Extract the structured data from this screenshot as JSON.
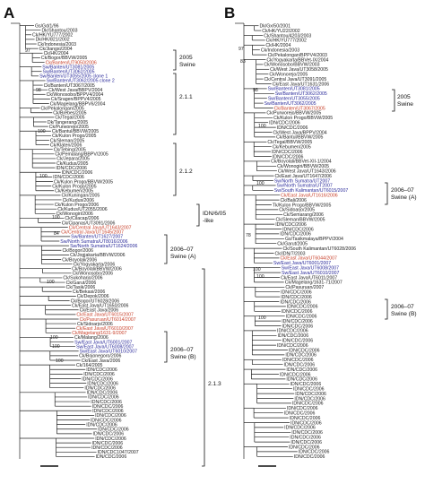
{
  "colors": {
    "swine": "#2a2a9a",
    "poultry_highlight": "#c8402a",
    "default": "#222222"
  },
  "panels": [
    {
      "id": "A",
      "letter": "A",
      "root": "Gs/Gd/1/96",
      "bootstraps": [
        "97",
        "98",
        "100",
        "100",
        "100",
        "84",
        "100",
        "100",
        "100",
        "100"
      ],
      "leaves": [
        {
          "t": "Gs/Gd/1/96",
          "c": "default"
        },
        {
          "t": "Dk/Shantou/2003",
          "c": "default"
        },
        {
          "t": "Ck/HK/YU777/2002",
          "c": "default"
        },
        {
          "t": "Dk/HK/821/2002",
          "c": "default"
        },
        {
          "t": "Ck/Indonesia/2003",
          "c": "default"
        },
        {
          "t": "Ck/Jiangxi/2004",
          "c": "default"
        },
        {
          "t": "Ck/HK/2004",
          "c": "default"
        },
        {
          "t": "Ck/Bogor/BBVW/2005",
          "c": "default"
        },
        {
          "t": "Ck/Banten/UT9050/2006",
          "c": "poultry_highlight"
        },
        {
          "t": "Sw/Banten/UT3081/2005",
          "c": "swine"
        },
        {
          "t": "Sw/Banten/UT3062/2005",
          "c": "swine"
        },
        {
          "t": "Sw/Banten/UT3055/2005 clone 1",
          "c": "swine"
        },
        {
          "t": "Sw/Banten/UT3062/2005 clone 2",
          "c": "swine"
        },
        {
          "t": "Ck/Banten/UT3067/2005",
          "c": "default"
        },
        {
          "t": "Ck/West Java/BBPV/2004",
          "c": "default"
        },
        {
          "t": "Ck/Wonosobo/BPPV4/2004",
          "c": "default"
        },
        {
          "t": "Ck/Sragen/BPPV4/2005",
          "c": "default"
        },
        {
          "t": "Ck/Magelang/BBPV6/2004",
          "c": "default"
        },
        {
          "t": "Ck/Pekalongan/2005",
          "c": "default"
        },
        {
          "t": "Ck/Brebes/2005",
          "c": "default"
        },
        {
          "t": "Ck/Tegal/2005",
          "c": "default"
        },
        {
          "t": "Dk/Tangerang/2005",
          "c": "default"
        },
        {
          "t": "Ck/Purworejo/2005",
          "c": "default"
        },
        {
          "t": "Ck/Bantul/BBVW/2005",
          "c": "default"
        },
        {
          "t": "Ck/Kulon Progo/2005",
          "c": "default"
        },
        {
          "t": "Ck/Sleman/2005",
          "c": "default"
        },
        {
          "t": "Ck/Klaten/2006",
          "c": "default"
        },
        {
          "t": "Ck/Tebing/2005",
          "c": "default"
        },
        {
          "t": "Ck/Pemalang/BBPV/2005",
          "c": "default"
        },
        {
          "t": "Ck/Jepara/2005",
          "c": "default"
        },
        {
          "t": "Ck/Kudus/2005",
          "c": "default"
        },
        {
          "t": "IDN/CDC/2006",
          "c": "default"
        },
        {
          "t": "IDN/CDC/2006",
          "c": "default"
        },
        {
          "t": "IDN/CDC/2006",
          "c": "default"
        },
        {
          "t": "Ck/Kulon Progo/BBVW/2005",
          "c": "default"
        },
        {
          "t": "Ck/Kulon Progo/2005",
          "c": "default"
        },
        {
          "t": "Ck/Kebumen/2005",
          "c": "default"
        },
        {
          "t": "Ck/Kuningan/2005",
          "c": "default"
        },
        {
          "t": "Ck/Kudus/2006",
          "c": "default"
        },
        {
          "t": "Ck/Kulon Progo/2006",
          "c": "default"
        },
        {
          "t": "Ck/Kudus/UT2055/2006",
          "c": "default"
        },
        {
          "t": "Ck/Wonogiri/2006",
          "c": "default"
        },
        {
          "t": "Ck/Cilacap/2006",
          "c": "default"
        },
        {
          "t": "Ck/Cipanas/UT3091/2006",
          "c": "default"
        },
        {
          "t": "Ck/Central Java/UT1643/2007",
          "c": "poultry_highlight"
        },
        {
          "t": "Ck/Central Java/UT1645/2007",
          "c": "poultry_highlight"
        },
        {
          "t": "Sw/Banten/UT1627/2007",
          "c": "swine"
        },
        {
          "t": "Sw/North Sumatra/UT8016/2006",
          "c": "swine"
        },
        {
          "t": "Sw/North Sumatra/UT1624/2006",
          "c": "swine"
        },
        {
          "t": "Ck/Bogor/2006",
          "c": "default"
        },
        {
          "t": "Ck/Jogjakarta/BBVW/2006",
          "c": "default"
        },
        {
          "t": "Ck/Boyolali/2006",
          "c": "default"
        },
        {
          "t": "Ck/Yogyakarta/2006",
          "c": "default"
        },
        {
          "t": "Ck/Boyolali/BBVW/2006",
          "c": "default"
        },
        {
          "t": "Ck/Wonosobo/2006",
          "c": "default"
        },
        {
          "t": "Ck/Sukoharjo/2006",
          "c": "default"
        },
        {
          "t": "Ck/Garut/2006",
          "c": "default"
        },
        {
          "t": "Ck/Tasik/2006",
          "c": "default"
        },
        {
          "t": "Ck/Bekasi/2006",
          "c": "default"
        },
        {
          "t": "Ck/Depok/2006",
          "c": "default"
        },
        {
          "t": "Ck/Bogor/UT6028/2006",
          "c": "default"
        },
        {
          "t": "Ck/East Java/UT1650/2006",
          "c": "default"
        },
        {
          "t": "Ck/East Java/2006",
          "c": "default"
        },
        {
          "t": "Ck/East Java/UT6015/2007",
          "c": "poultry_highlight"
        },
        {
          "t": "Ck/Pasuruan/UT6014/2007",
          "c": "poultry_highlight"
        },
        {
          "t": "Ck/Sidoarjo/2006",
          "c": "default"
        },
        {
          "t": "Ck/East Java/UT6010/2007",
          "c": "poultry_highlight"
        },
        {
          "t": "Ck/Magelang/1631-9/2007",
          "c": "poultry_highlight"
        },
        {
          "t": "Ck/Malang/2006",
          "c": "default"
        },
        {
          "t": "Sw/East Java/UT6001/2007",
          "c": "swine"
        },
        {
          "t": "Sw/East Java/UT6008/2007",
          "c": "swine"
        },
        {
          "t": "Sw/East Java/UT6010/2007",
          "c": "swine"
        },
        {
          "t": "Ck/Bojonegoro/2006",
          "c": "default"
        },
        {
          "t": "Ck/East Java/2006",
          "c": "default"
        },
        {
          "t": "Ck/164/2005",
          "c": "default"
        },
        {
          "t": "IDN/CDC/2006",
          "c": "default"
        },
        {
          "t": "IDN/CDC/2006",
          "c": "default"
        },
        {
          "t": "IDN/CDC/2006",
          "c": "default"
        },
        {
          "t": "IDN/CDC/2006",
          "c": "default"
        },
        {
          "t": "IDN/CDC/2006",
          "c": "default"
        },
        {
          "t": "IDN/CDC/2006",
          "c": "default"
        },
        {
          "t": "IDN/CDC/2006",
          "c": "default"
        },
        {
          "t": "IDN/CDC/2006",
          "c": "default"
        },
        {
          "t": "IDN/CDC/2006",
          "c": "default"
        },
        {
          "t": "IDN/CDC/2006",
          "c": "default"
        },
        {
          "t": "IDN/CDC/2006",
          "c": "default"
        },
        {
          "t": "IDN/CDC/2006",
          "c": "default"
        },
        {
          "t": "IDN/CDC/2006",
          "c": "default"
        },
        {
          "t": "IDN/CDC/2006",
          "c": "default"
        },
        {
          "t": "IDN/CDC/2006",
          "c": "default"
        },
        {
          "t": "IDN/CDC/2006",
          "c": "default"
        },
        {
          "t": "IDN/CDC/2006",
          "c": "default"
        },
        {
          "t": "IDN/CDC/2006",
          "c": "default"
        },
        {
          "t": "IDN/CDC1047/2007",
          "c": "default"
        },
        {
          "t": "IDN/CDC/2006",
          "c": "default"
        }
      ],
      "clades": [
        {
          "label": "2005",
          "sub": "Swine"
        },
        {
          "label": "2.1.1"
        },
        {
          "label": "2.1.2"
        },
        {
          "label": "IDN/6/05",
          "sub": "-like"
        },
        {
          "label": "2006–07",
          "sub": "Swine (A)"
        },
        {
          "label": "2006–07",
          "sub": "Swine (B)"
        },
        {
          "label": "2.1.3"
        }
      ]
    },
    {
      "id": "B",
      "letter": "B",
      "root": "Dk/Gx/50/2001",
      "bootstraps": [
        "97",
        "83",
        "98",
        "100",
        "100",
        "78",
        "100",
        "100",
        "100"
      ],
      "leaves": [
        {
          "t": "Dk/Gx/50/2001",
          "c": "default"
        },
        {
          "t": "Ck/HK/YU22/2002",
          "c": "default"
        },
        {
          "t": "Ck/Shantou/4203/2003",
          "c": "default"
        },
        {
          "t": "Ck/HK/YU777/2002",
          "c": "default"
        },
        {
          "t": "Ck/HK/2004",
          "c": "default"
        },
        {
          "t": "Ck/Indonesia/2003",
          "c": "default"
        },
        {
          "t": "Ck/Pekalongan/BPPV4/2003",
          "c": "default"
        },
        {
          "t": "Ck/Yogyakarta/BBVet-IX/2004",
          "c": "default"
        },
        {
          "t": "Ck/Wonosobo/BBVW/2003",
          "c": "default"
        },
        {
          "t": "Ck/West Java/UT3058/2005",
          "c": "default"
        },
        {
          "t": "Ck/Wonorejo/2005",
          "c": "default"
        },
        {
          "t": "Ck/Central Java/UT3091/2005",
          "c": "default"
        },
        {
          "t": "Ck/East Java/UT1631/2006",
          "c": "default"
        },
        {
          "t": "Sw/Banten/UT3081/2005",
          "c": "swine"
        },
        {
          "t": "Sw/Banten/UT3062/2005",
          "c": "swine"
        },
        {
          "t": "Sw/Banten/UT3055/2005",
          "c": "swine"
        },
        {
          "t": "Sw/Banten/UT3062/2005",
          "c": "swine"
        },
        {
          "t": "Ck/Banten/UT3067/2005",
          "c": "poultry_highlight"
        },
        {
          "t": "Ck/Purworejo/BBVW/2005",
          "c": "default"
        },
        {
          "t": "Ck/Kulon Progo/BBVW/2005",
          "c": "default"
        },
        {
          "t": "IDN/CDC/2006",
          "c": "default"
        },
        {
          "t": "IDN/CDC/2006",
          "c": "default"
        },
        {
          "t": "Ck/West Java/BPPV/2004",
          "c": "default"
        },
        {
          "t": "Ck/Bantul/BBVW/2005",
          "c": "default"
        },
        {
          "t": "Ck/Tegal/BBVW/2005",
          "c": "default"
        },
        {
          "t": "Ck/Kebumen/2005",
          "c": "default"
        },
        {
          "t": "IDN/CDC/2006",
          "c": "default"
        },
        {
          "t": "IDN/CDC/2006",
          "c": "default"
        },
        {
          "t": "Ck/Boyolali/BBVet-XII-1/2004",
          "c": "default"
        },
        {
          "t": "Ck/Wonogiri/BBVW/2005",
          "c": "default"
        },
        {
          "t": "Ck/West Java/UT1643/2006",
          "c": "default"
        },
        {
          "t": "Ck/East Java/UT1647/2006",
          "c": "default"
        },
        {
          "t": "Sw/North Sumatra/UT2007",
          "c": "swine"
        },
        {
          "t": "Sw/North Sumatra/UT2007",
          "c": "swine"
        },
        {
          "t": "Sw/South Kalimantan/UT6015/2007",
          "c": "swine"
        },
        {
          "t": "Ck/East Java/UT1616/2006",
          "c": "poultry_highlight"
        },
        {
          "t": "Ck/Bali/2006",
          "c": "default"
        },
        {
          "t": "Tk/Kulon Progo/BBVW/2005",
          "c": "default"
        },
        {
          "t": "Ck/Sidoarjo/2005",
          "c": "default"
        },
        {
          "t": "Ck/Semarang/2006",
          "c": "default"
        },
        {
          "t": "Ck/Sleman/BBVW/2005",
          "c": "default"
        },
        {
          "t": "IDN/CDC/2006",
          "c": "default"
        },
        {
          "t": "IDN/CDC/2006",
          "c": "default"
        },
        {
          "t": "IDN/CDC/2006",
          "c": "default"
        },
        {
          "t": "Gs/Tasikmalaya/BPPV/2004",
          "c": "default"
        },
        {
          "t": "Ck/Garut/2005",
          "c": "default"
        },
        {
          "t": "Ck/South Kalimantan/UT6028/2006",
          "c": "default"
        },
        {
          "t": "Ck/IDN/7/2003",
          "c": "default"
        },
        {
          "t": "Ck/East Java/UT6044/2007",
          "c": "poultry_highlight"
        },
        {
          "t": "Sw/East Java/UT6001/2007",
          "c": "swine"
        },
        {
          "t": "Sw/East Java/UT6008/2007",
          "c": "swine"
        },
        {
          "t": "Sw/East Java/UT6010/2007",
          "c": "swine"
        },
        {
          "t": "Ck/East Java/UT6011/2007",
          "c": "default"
        },
        {
          "t": "Ck/Magelang/1631-71/2007",
          "c": "default"
        },
        {
          "t": "Ck/Pasuruan/2007",
          "c": "default"
        },
        {
          "t": "IDN/CDC/2006",
          "c": "default"
        },
        {
          "t": "IDN/CDC/2006",
          "c": "default"
        },
        {
          "t": "IDN/CDC/2006",
          "c": "default"
        },
        {
          "t": "IDN/CDC/2006",
          "c": "default"
        },
        {
          "t": "IDN/CDC/2006",
          "c": "default"
        },
        {
          "t": "IDN/CDC/2006",
          "c": "default"
        },
        {
          "t": "IDN/CDC/2006",
          "c": "default"
        },
        {
          "t": "IDN/CDC/2006",
          "c": "default"
        },
        {
          "t": "IDN/CDC/2006",
          "c": "default"
        },
        {
          "t": "IDN/CDC/2006",
          "c": "default"
        },
        {
          "t": "IDN/CDC/2006",
          "c": "default"
        },
        {
          "t": "IDN/CDC/2006",
          "c": "default"
        },
        {
          "t": "IDN/CDC/2006",
          "c": "default"
        },
        {
          "t": "IDN/CDC/2006",
          "c": "default"
        },
        {
          "t": "IDN/CDC/2006",
          "c": "default"
        },
        {
          "t": "IDN/CDC/2006",
          "c": "default"
        },
        {
          "t": "IDN/CDC/2006",
          "c": "default"
        },
        {
          "t": "IDN/CDC/2006",
          "c": "default"
        },
        {
          "t": "IDN/CDC/2006",
          "c": "default"
        },
        {
          "t": "IDN/CDC/2006",
          "c": "default"
        },
        {
          "t": "IDN/CDC/2006",
          "c": "default"
        },
        {
          "t": "IDN/CDC/2006",
          "c": "default"
        },
        {
          "t": "IDN/CDC/2006",
          "c": "default"
        },
        {
          "t": "IDN/CDC/2006",
          "c": "default"
        },
        {
          "t": "IDN/CDC/2006",
          "c": "default"
        },
        {
          "t": "IDN/CDC/2006",
          "c": "default"
        },
        {
          "t": "IDN/CDC/2006",
          "c": "default"
        },
        {
          "t": "IDN/CDC/2006",
          "c": "default"
        },
        {
          "t": "IDN/CDC/2006",
          "c": "default"
        },
        {
          "t": "IDN/CDC/2006",
          "c": "default"
        },
        {
          "t": "IDN/CDC/2006",
          "c": "default"
        },
        {
          "t": "IDN/CDC/2006",
          "c": "default"
        },
        {
          "t": "IDN/CDC/2006",
          "c": "default"
        },
        {
          "t": "IDN/CDC/2006",
          "c": "default"
        },
        {
          "t": "IDN/CDC/2006",
          "c": "default"
        }
      ],
      "clades": [
        {
          "label": "2005",
          "sub": "Swine"
        },
        {
          "label": "2006–07",
          "sub": "Swine (A)"
        },
        {
          "label": "2006–07",
          "sub": "Swine (B)"
        }
      ]
    }
  ]
}
